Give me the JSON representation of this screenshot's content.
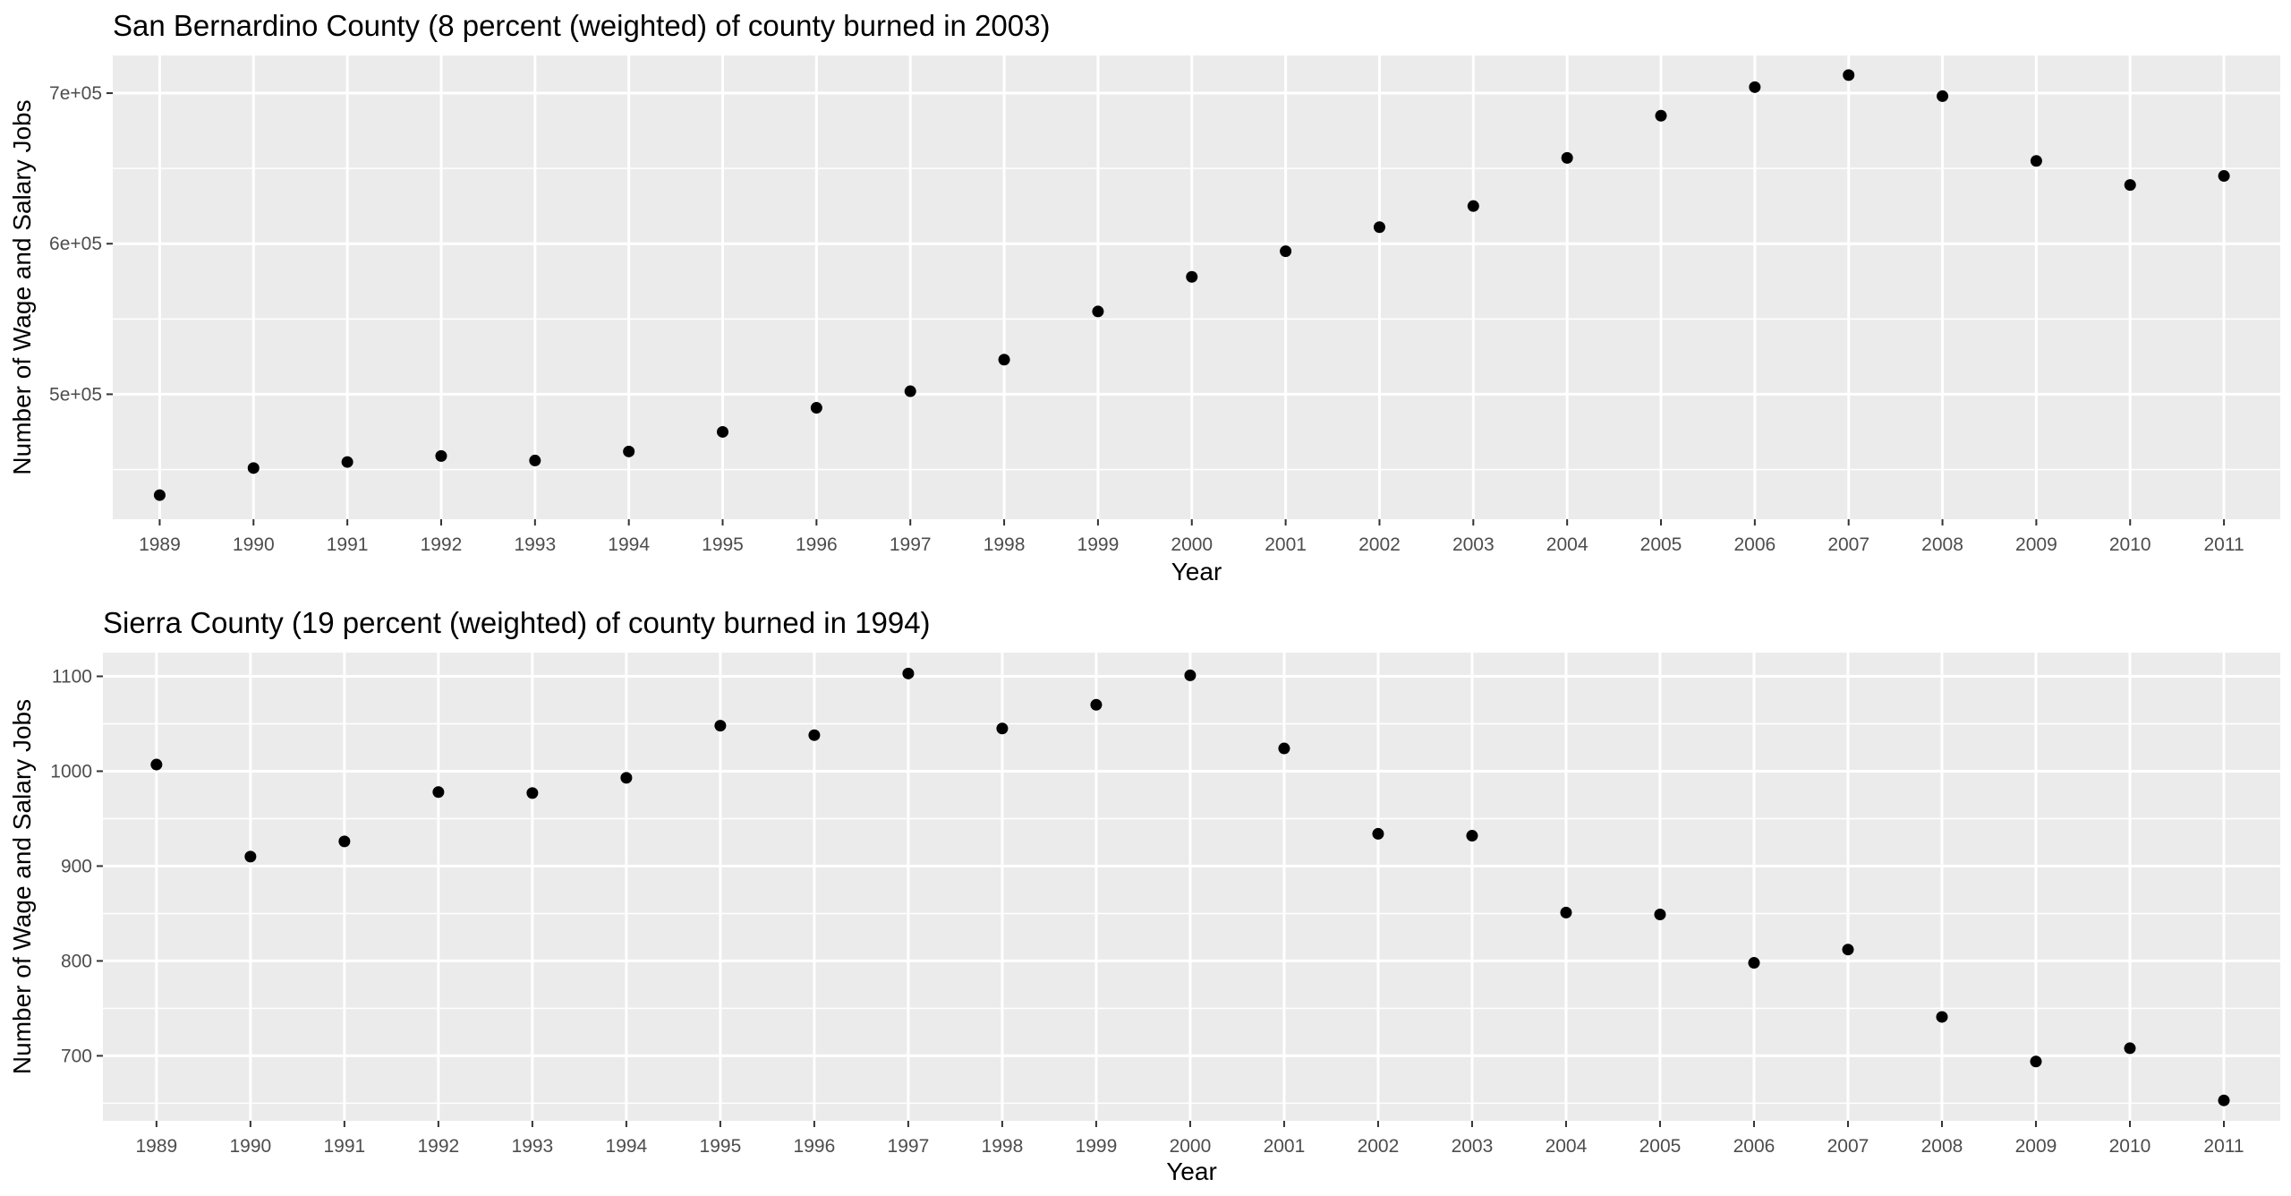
{
  "chart_data": [
    {
      "type": "scatter",
      "title": "San Bernardino County (8 percent (weighted) of county burned in 2003)",
      "xlabel": "Year",
      "ylabel": "Number of Wage and Salary Jobs",
      "x": [
        1989,
        1990,
        1991,
        1992,
        1993,
        1994,
        1995,
        1996,
        1997,
        1998,
        1999,
        2000,
        2001,
        2002,
        2003,
        2004,
        2005,
        2006,
        2007,
        2008,
        2009,
        2010,
        2011
      ],
      "y": [
        433000,
        451000,
        455000,
        459000,
        456000,
        462000,
        475000,
        491000,
        502000,
        523000,
        555000,
        578000,
        595000,
        611000,
        625000,
        657000,
        685000,
        704000,
        712000,
        698000,
        655000,
        639000,
        645000
      ],
      "xticks": [
        "1989",
        "1990",
        "1991",
        "1992",
        "1993",
        "1994",
        "1995",
        "1996",
        "1997",
        "1998",
        "1999",
        "2000",
        "2001",
        "2002",
        "2003",
        "2004",
        "2005",
        "2006",
        "2007",
        "2008",
        "2009",
        "2010",
        "2011"
      ],
      "yticks": [
        500000,
        600000,
        700000
      ],
      "ytick_labels": [
        "5e+05",
        "6e+05",
        "7e+05"
      ],
      "yminor": [
        450000,
        550000,
        650000
      ],
      "xlim": [
        1988.5,
        2011.6
      ],
      "ylim": [
        417000,
        725000
      ],
      "grid": true,
      "legend": "none"
    },
    {
      "type": "scatter",
      "title": "Sierra County (19 percent (weighted) of county burned in 1994)",
      "xlabel": "Year",
      "ylabel": "Number of Wage and Salary Jobs",
      "x": [
        1989,
        1990,
        1991,
        1992,
        1993,
        1994,
        1995,
        1996,
        1997,
        1998,
        1999,
        2000,
        2001,
        2002,
        2003,
        2004,
        2005,
        2006,
        2007,
        2008,
        2009,
        2010,
        2011
      ],
      "y": [
        1007,
        910,
        926,
        978,
        977,
        993,
        1048,
        1038,
        1103,
        1045,
        1070,
        1101,
        1024,
        934,
        932,
        851,
        849,
        798,
        812,
        741,
        694,
        708,
        653
      ],
      "xticks": [
        "1989",
        "1990",
        "1991",
        "1992",
        "1993",
        "1994",
        "1995",
        "1996",
        "1997",
        "1998",
        "1999",
        "2000",
        "2001",
        "2002",
        "2003",
        "2004",
        "2005",
        "2006",
        "2007",
        "2008",
        "2009",
        "2010",
        "2011"
      ],
      "yticks": [
        700,
        800,
        900,
        1000,
        1100
      ],
      "ytick_labels": [
        "700",
        "800",
        "900",
        "1000",
        "1100"
      ],
      "yminor": [
        650,
        750,
        850,
        950,
        1050
      ],
      "xlim": [
        1988.43,
        2011.6
      ],
      "ylim": [
        631.5,
        1125
      ],
      "grid": true,
      "legend": "none"
    }
  ]
}
